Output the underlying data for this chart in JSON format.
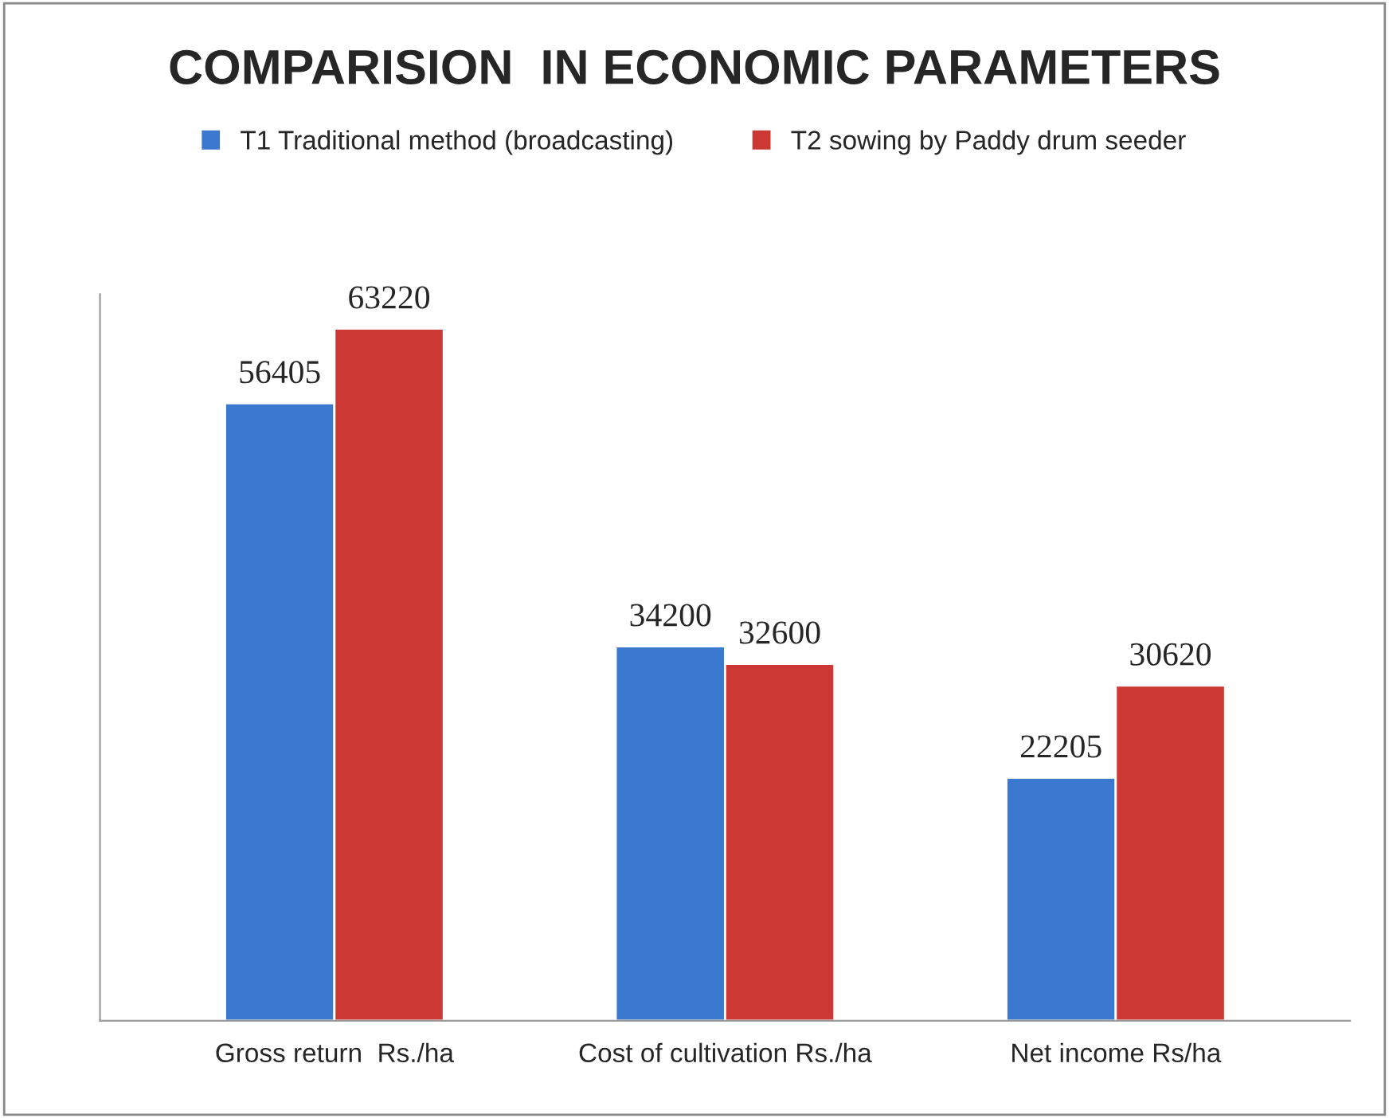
{
  "chart_data": {
    "type": "bar",
    "title": "COMPARISION  IN ECONOMIC PARAMETERS",
    "categories": [
      "Gross return  Rs./ha",
      "Cost of cultivation Rs./ha",
      "Net income Rs/ha"
    ],
    "series": [
      {
        "name": "T1 Traditional method (broadcasting)",
        "color": "#3b78cf",
        "values": [
          56405,
          34200,
          22205
        ]
      },
      {
        "name": "T2 sowing by Paddy drum seeder",
        "color": "#cc3833",
        "values": [
          63220,
          32600,
          30620
        ]
      }
    ],
    "data_labels": true,
    "legend": "top",
    "grid": false
  }
}
